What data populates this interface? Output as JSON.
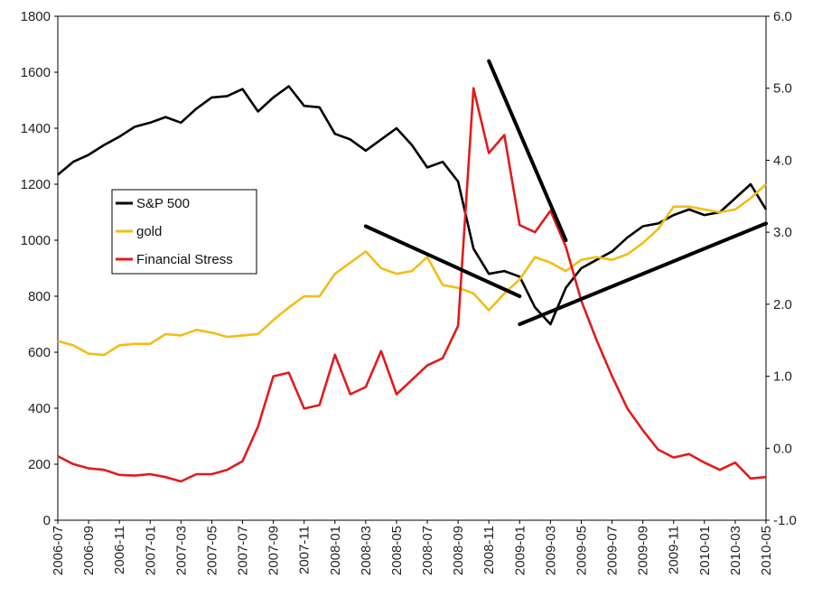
{
  "chart_data": {
    "type": "line",
    "title": "",
    "xlabel": "",
    "ylabel": "",
    "y2label": "",
    "grid": false,
    "legend_position": "left",
    "x_tick_labels": [
      "2006-07",
      "2006-09",
      "2006-11",
      "2007-01",
      "2007-03",
      "2007-05",
      "2007-07",
      "2007-09",
      "2007-11",
      "2008-01",
      "2008-03",
      "2008-05",
      "2008-07",
      "2008-09",
      "2008-11",
      "2009-01",
      "2009-03",
      "2009-05",
      "2009-07",
      "2009-09",
      "2009-11",
      "2010-01",
      "2010-03",
      "2010-05"
    ],
    "x_start": "2006-07",
    "x_end": "2010-05",
    "ylim": [
      0,
      1800
    ],
    "y_ticks": [
      "0",
      "200",
      "400",
      "600",
      "800",
      "1000",
      "1200",
      "1400",
      "1600",
      "1800"
    ],
    "y2lim": [
      -1.0,
      6.0
    ],
    "y2_ticks": [
      "-1.0",
      "0.0",
      "1.0",
      "2.0",
      "3.0",
      "4.0",
      "5.0",
      "6.0"
    ],
    "series": [
      {
        "name": "S&P 500",
        "axis": "left",
        "color": "#000000",
        "points": [
          [
            "2006-07",
            1234
          ],
          [
            "2006-08",
            1280
          ],
          [
            "2006-09",
            1305
          ],
          [
            "2006-10",
            1340
          ],
          [
            "2006-11",
            1370
          ],
          [
            "2006-12",
            1405
          ],
          [
            "2007-01",
            1420
          ],
          [
            "2007-02",
            1440
          ],
          [
            "2007-03",
            1420
          ],
          [
            "2007-04",
            1470
          ],
          [
            "2007-05",
            1510
          ],
          [
            "2007-06",
            1515
          ],
          [
            "2007-07",
            1540
          ],
          [
            "2007-08",
            1460
          ],
          [
            "2007-09",
            1510
          ],
          [
            "2007-10",
            1550
          ],
          [
            "2007-11",
            1480
          ],
          [
            "2007-12",
            1475
          ],
          [
            "2008-01",
            1380
          ],
          [
            "2008-02",
            1360
          ],
          [
            "2008-03",
            1320
          ],
          [
            "2008-04",
            1360
          ],
          [
            "2008-05",
            1400
          ],
          [
            "2008-06",
            1340
          ],
          [
            "2008-07",
            1260
          ],
          [
            "2008-08",
            1280
          ],
          [
            "2008-09",
            1210
          ],
          [
            "2008-10",
            970
          ],
          [
            "2008-11",
            880
          ],
          [
            "2008-12",
            890
          ],
          [
            "2009-01",
            870
          ],
          [
            "2009-02",
            760
          ],
          [
            "2009-03",
            700
          ],
          [
            "2009-04",
            830
          ],
          [
            "2009-05",
            900
          ],
          [
            "2009-06",
            930
          ],
          [
            "2009-07",
            960
          ],
          [
            "2009-08",
            1010
          ],
          [
            "2009-09",
            1050
          ],
          [
            "2009-10",
            1060
          ],
          [
            "2009-11",
            1090
          ],
          [
            "2009-12",
            1110
          ],
          [
            "2010-01",
            1090
          ],
          [
            "2010-02",
            1100
          ],
          [
            "2010-03",
            1150
          ],
          [
            "2010-04",
            1200
          ],
          [
            "2010-05",
            1110
          ]
        ]
      },
      {
        "name": "gold",
        "axis": "left",
        "color": "#f2bd17",
        "points": [
          [
            "2006-07",
            640
          ],
          [
            "2006-08",
            625
          ],
          [
            "2006-09",
            595
          ],
          [
            "2006-10",
            590
          ],
          [
            "2006-11",
            625
          ],
          [
            "2006-12",
            630
          ],
          [
            "2007-01",
            630
          ],
          [
            "2007-02",
            665
          ],
          [
            "2007-03",
            660
          ],
          [
            "2007-04",
            680
          ],
          [
            "2007-05",
            670
          ],
          [
            "2007-06",
            655
          ],
          [
            "2007-07",
            660
          ],
          [
            "2007-08",
            665
          ],
          [
            "2007-09",
            715
          ],
          [
            "2007-10",
            760
          ],
          [
            "2007-11",
            800
          ],
          [
            "2007-12",
            800
          ],
          [
            "2008-01",
            880
          ],
          [
            "2008-02",
            920
          ],
          [
            "2008-03",
            960
          ],
          [
            "2008-04",
            900
          ],
          [
            "2008-05",
            880
          ],
          [
            "2008-06",
            890
          ],
          [
            "2008-07",
            940
          ],
          [
            "2008-08",
            840
          ],
          [
            "2008-09",
            830
          ],
          [
            "2008-10",
            810
          ],
          [
            "2008-11",
            750
          ],
          [
            "2008-12",
            810
          ],
          [
            "2009-01",
            860
          ],
          [
            "2009-02",
            940
          ],
          [
            "2009-03",
            920
          ],
          [
            "2009-04",
            890
          ],
          [
            "2009-05",
            930
          ],
          [
            "2009-06",
            940
          ],
          [
            "2009-07",
            930
          ],
          [
            "2009-08",
            950
          ],
          [
            "2009-09",
            990
          ],
          [
            "2009-10",
            1040
          ],
          [
            "2009-11",
            1120
          ],
          [
            "2009-12",
            1120
          ],
          [
            "2010-01",
            1110
          ],
          [
            "2010-02",
            1100
          ],
          [
            "2010-03",
            1110
          ],
          [
            "2010-04",
            1150
          ],
          [
            "2010-05",
            1200
          ]
        ]
      },
      {
        "name": "Financial Stress",
        "axis": "right",
        "color": "#e11b1b",
        "points": [
          [
            "2006-07",
            -0.11
          ],
          [
            "2006-08",
            -0.22
          ],
          [
            "2006-09",
            -0.28
          ],
          [
            "2006-10",
            -0.3
          ],
          [
            "2006-11",
            -0.37
          ],
          [
            "2006-12",
            -0.38
          ],
          [
            "2007-01",
            -0.36
          ],
          [
            "2007-02",
            -0.4
          ],
          [
            "2007-03",
            -0.46
          ],
          [
            "2007-04",
            -0.36
          ],
          [
            "2007-05",
            -0.36
          ],
          [
            "2007-06",
            -0.3
          ],
          [
            "2007-07",
            -0.18
          ],
          [
            "2007-08",
            0.3
          ],
          [
            "2007-09",
            1.0
          ],
          [
            "2007-10",
            1.05
          ],
          [
            "2007-11",
            0.55
          ],
          [
            "2007-12",
            0.6
          ],
          [
            "2008-01",
            1.3
          ],
          [
            "2008-02",
            0.75
          ],
          [
            "2008-03",
            0.85
          ],
          [
            "2008-04",
            1.35
          ],
          [
            "2008-05",
            0.75
          ],
          [
            "2008-06",
            0.95
          ],
          [
            "2008-07",
            1.15
          ],
          [
            "2008-08",
            1.25
          ],
          [
            "2008-09",
            1.7
          ],
          [
            "2008-10",
            5.0
          ],
          [
            "2008-11",
            4.1
          ],
          [
            "2008-12",
            4.35
          ],
          [
            "2009-01",
            3.1
          ],
          [
            "2009-02",
            3.0
          ],
          [
            "2009-03",
            3.3
          ],
          [
            "2009-04",
            2.8
          ],
          [
            "2009-05",
            2.05
          ],
          [
            "2009-06",
            1.5
          ],
          [
            "2009-07",
            1.0
          ],
          [
            "2009-08",
            0.55
          ],
          [
            "2009-09",
            0.25
          ],
          [
            "2009-10",
            -0.02
          ],
          [
            "2009-11",
            -0.13
          ],
          [
            "2009-12",
            -0.08
          ],
          [
            "2010-01",
            -0.2
          ],
          [
            "2010-02",
            -0.3
          ],
          [
            "2010-03",
            -0.2
          ],
          [
            "2010-04",
            -0.42
          ],
          [
            "2010-05",
            -0.4
          ]
        ]
      }
    ],
    "annotations": [
      {
        "type": "trend-line",
        "color": "#000000",
        "from": [
          "2008-03",
          1050
        ],
        "to": [
          "2009-01",
          800
        ]
      },
      {
        "type": "trend-line",
        "color": "#000000",
        "from": [
          "2008-11",
          1640
        ],
        "to": [
          "2009-04",
          1000
        ]
      },
      {
        "type": "trend-line",
        "color": "#000000",
        "from": [
          "2009-01",
          700
        ],
        "to": [
          "2010-05",
          1060
        ]
      }
    ]
  }
}
